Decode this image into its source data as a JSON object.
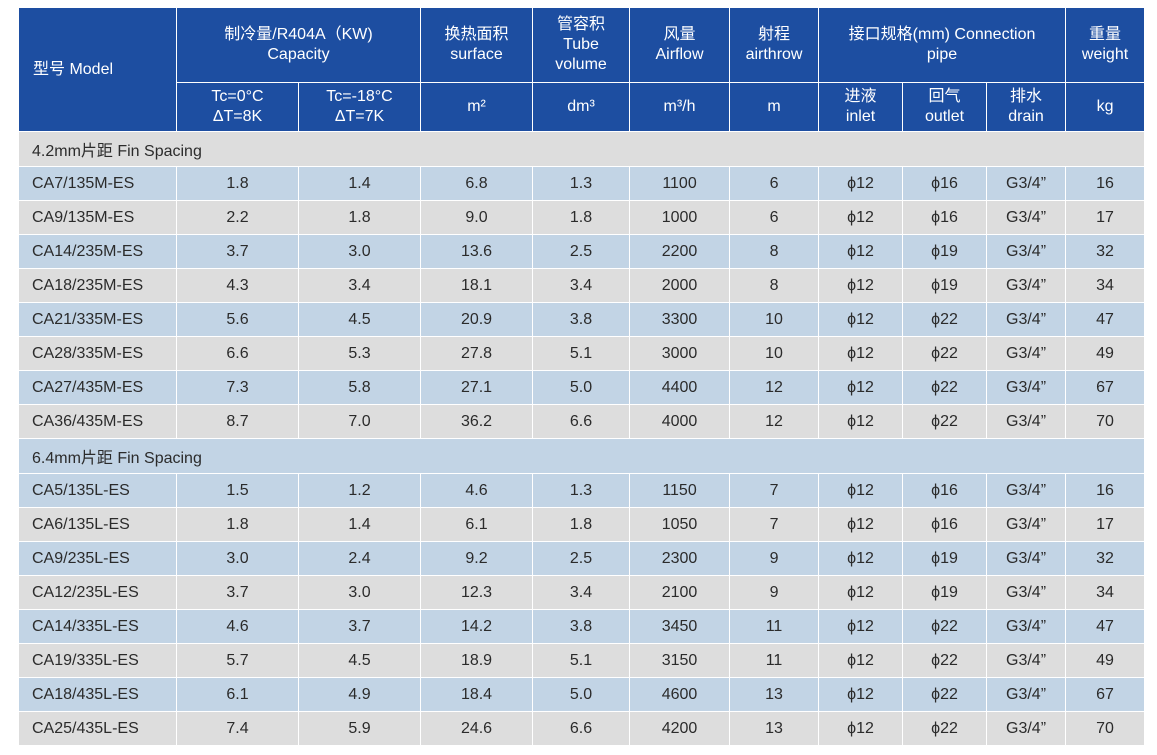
{
  "header": {
    "model": "型号 Model",
    "capacity": [
      "制冷量/R404A（KW)",
      "Capacity"
    ],
    "surface": [
      "换热面积",
      "surface"
    ],
    "tube_volume": [
      "管容积",
      "Tube",
      "volume"
    ],
    "airflow": [
      "风量",
      "Airflow"
    ],
    "airthrow": [
      "射程",
      "airthrow"
    ],
    "connection": [
      "接口规格(mm) Connection",
      "pipe"
    ],
    "weight": [
      "重量",
      "weight"
    ],
    "cap_tc0": [
      "Tc=0°C",
      "ΔT=8K"
    ],
    "cap_tc18": [
      "Tc=-18°C",
      "ΔT=7K"
    ],
    "unit_surface": "m²",
    "unit_volume": "dm³",
    "unit_airflow": "m³/h",
    "unit_airthrow": "m",
    "inlet": [
      "进液",
      "inlet"
    ],
    "outlet": [
      "回气",
      "outlet"
    ],
    "drain": [
      "排水",
      "drain"
    ],
    "unit_weight": "kg"
  },
  "groups": [
    {
      "title": "4.2mm片距  Fin Spacing",
      "rows": [
        [
          "CA7/135M-ES",
          "1.8",
          "1.4",
          "6.8",
          "1.3",
          "1100",
          "6",
          "ϕ12",
          "ϕ16",
          "G3/4”",
          "16"
        ],
        [
          "CA9/135M-ES",
          "2.2",
          "1.8",
          "9.0",
          "1.8",
          "1000",
          "6",
          "ϕ12",
          "ϕ16",
          "G3/4”",
          "17"
        ],
        [
          "CA14/235M-ES",
          "3.7",
          "3.0",
          "13.6",
          "2.5",
          "2200",
          "8",
          "ϕ12",
          "ϕ19",
          "G3/4”",
          "32"
        ],
        [
          "CA18/235M-ES",
          "4.3",
          "3.4",
          "18.1",
          "3.4",
          "2000",
          "8",
          "ϕ12",
          "ϕ19",
          "G3/4”",
          "34"
        ],
        [
          "CA21/335M-ES",
          "5.6",
          "4.5",
          "20.9",
          "3.8",
          "3300",
          "10",
          "ϕ12",
          "ϕ22",
          "G3/4”",
          "47"
        ],
        [
          "CA28/335M-ES",
          "6.6",
          "5.3",
          "27.8",
          "5.1",
          "3000",
          "10",
          "ϕ12",
          "ϕ22",
          "G3/4”",
          "49"
        ],
        [
          "CA27/435M-ES",
          "7.3",
          "5.8",
          "27.1",
          "5.0",
          "4400",
          "12",
          "ϕ12",
          "ϕ22",
          "G3/4”",
          "67"
        ],
        [
          "CA36/435M-ES",
          "8.7",
          "7.0",
          "36.2",
          "6.6",
          "4000",
          "12",
          "ϕ12",
          "ϕ22",
          "G3/4”",
          "70"
        ]
      ]
    },
    {
      "title": "6.4mm片距 Fin Spacing",
      "rows": [
        [
          "CA5/135L-ES",
          "1.5",
          "1.2",
          "4.6",
          "1.3",
          "1150",
          "7",
          "ϕ12",
          "ϕ16",
          "G3/4”",
          "16"
        ],
        [
          "CA6/135L-ES",
          "1.8",
          "1.4",
          "6.1",
          "1.8",
          "1050",
          "7",
          "ϕ12",
          "ϕ16",
          "G3/4”",
          "17"
        ],
        [
          "CA9/235L-ES",
          "3.0",
          "2.4",
          "9.2",
          "2.5",
          "2300",
          "9",
          "ϕ12",
          "ϕ19",
          "G3/4”",
          "32"
        ],
        [
          "CA12/235L-ES",
          "3.7",
          "3.0",
          "12.3",
          "3.4",
          "2100",
          "9",
          "ϕ12",
          "ϕ19",
          "G3/4”",
          "34"
        ],
        [
          "CA14/335L-ES",
          "4.6",
          "3.7",
          "14.2",
          "3.8",
          "3450",
          "11",
          "ϕ12",
          "ϕ22",
          "G3/4”",
          "47"
        ],
        [
          "CA19/335L-ES",
          "5.7",
          "4.5",
          "18.9",
          "5.1",
          "3150",
          "11",
          "ϕ12",
          "ϕ22",
          "G3/4”",
          "49"
        ],
        [
          "CA18/435L-ES",
          "6.1",
          "4.9",
          "18.4",
          "5.0",
          "4600",
          "13",
          "ϕ12",
          "ϕ22",
          "G3/4”",
          "67"
        ],
        [
          "CA25/435L-ES",
          "7.4",
          "5.9",
          "24.6",
          "6.6",
          "4200",
          "13",
          "ϕ12",
          "ϕ22",
          "G3/4”",
          "70"
        ]
      ]
    }
  ],
  "colors": {
    "header_bg": "#1d4ea1",
    "row_gray": "#dddddd",
    "row_blue": "#c2d4e5"
  }
}
